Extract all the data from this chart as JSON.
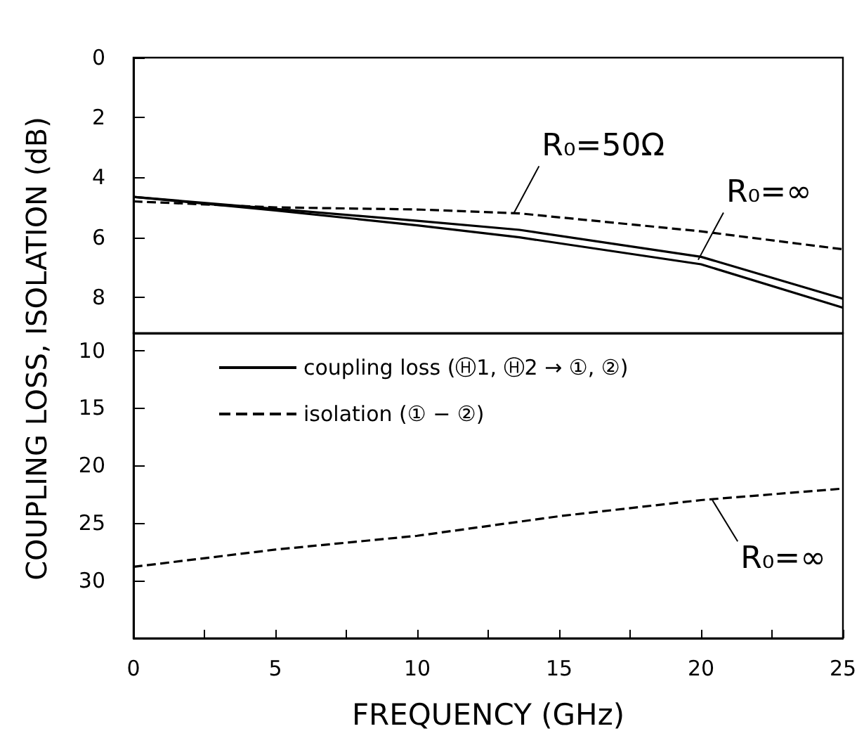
{
  "chart_data": [
    {
      "type": "line",
      "ylabel": "COUPLING LOSS, ISOLATION (dB)",
      "x": [
        0,
        5,
        10,
        13.6,
        20,
        25
      ],
      "xlim": [
        0,
        25
      ],
      "ylim": [
        9.2,
        0
      ],
      "yticks": [
        0,
        2,
        4,
        6,
        8
      ],
      "tick_labels": "y",
      "legend": "bottom left",
      "grid": false,
      "marker": "none",
      "series": [
        {
          "name": "coupling loss (Ⓗ1, Ⓗ2 → ①, ②)",
          "color": "#000000",
          "line_style": "solid",
          "values": [
            4.65,
            5.05,
            5.45,
            5.75,
            6.65,
            8.05
          ]
        },
        {
          "color": "#000000",
          "line_style": "solid",
          "values": [
            4.65,
            5.1,
            5.6,
            6.0,
            6.9,
            8.35
          ]
        },
        {
          "name": "isolation (① − ②)",
          "color": "#000000",
          "line_style": "dashed",
          "values": [
            4.8,
            5.0,
            5.07,
            5.2,
            5.8,
            6.4
          ]
        }
      ],
      "annotations": [
        {
          "text": "R₀=50Ω",
          "x": 13.4,
          "y": 5.2
        },
        {
          "text": "R₀=∞",
          "x": 19.9,
          "y": 6.75
        }
      ]
    },
    {
      "type": "line",
      "xlabel": "FREQUENCY (GHz)",
      "x": [
        0,
        5,
        10,
        15,
        20,
        25
      ],
      "xlim": [
        0,
        25
      ],
      "xticks": [
        0,
        {
          "value": 2.5,
          "label": null
        },
        5,
        {
          "value": 7.5,
          "label": null
        },
        10,
        {
          "value": 12.5,
          "label": null
        },
        15,
        {
          "value": 17.5,
          "label": null
        },
        20,
        {
          "value": 22.5,
          "label": null
        },
        25
      ],
      "ylim": [
        35,
        8.5
      ],
      "yticks": [
        10,
        15,
        20,
        25,
        30
      ],
      "grid": false,
      "marker": "none",
      "series": [
        {
          "color": "#000000",
          "line_style": "dashed",
          "values": [
            28.8,
            27.3,
            26.1,
            24.4,
            23.0,
            22.0
          ]
        }
      ],
      "annotations": [
        {
          "text": "R₀=∞",
          "x": 20.4,
          "y": 23.0
        }
      ]
    }
  ]
}
